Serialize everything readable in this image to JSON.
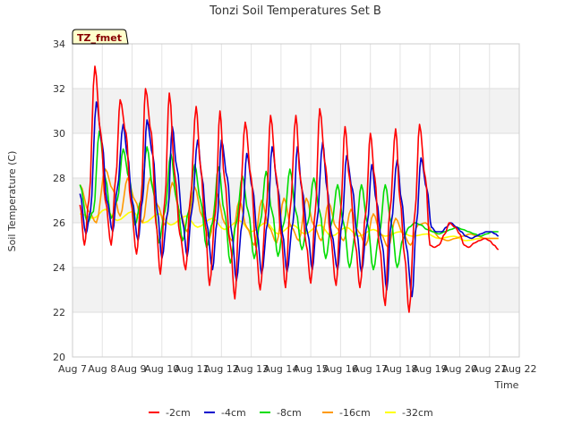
{
  "chart_data": {
    "type": "line",
    "title": "Tonzi Soil Temperatures Set B",
    "xlabel": "Time",
    "ylabel": "Soil Temperature (C)",
    "annotation": "TZ_fmet",
    "xlim": [
      7,
      22
    ],
    "ylim": [
      20,
      34
    ],
    "x_ticks": [
      7,
      8,
      9,
      10,
      11,
      12,
      13,
      14,
      15,
      16,
      17,
      18,
      19,
      20,
      21,
      22
    ],
    "x_tick_labels": [
      "Aug 7",
      "Aug 8",
      "Aug 9",
      "Aug 10",
      "Aug 11",
      "Aug 12",
      "Aug 13",
      "Aug 14",
      "Aug 15",
      "Aug 16",
      "Aug 17",
      "Aug 18",
      "Aug 19",
      "Aug 20",
      "Aug 21",
      "Aug 22"
    ],
    "y_ticks": [
      20,
      22,
      24,
      26,
      28,
      30,
      32,
      34
    ],
    "y_tick_labels": [
      "20",
      "22",
      "24",
      "26",
      "28",
      "30",
      "32",
      "34"
    ],
    "grid": true,
    "legend_position": "bottom",
    "series": [
      {
        "name": "-2cm",
        "color": "#ff0000",
        "x": [
          7.25,
          7.4,
          7.55,
          7.75,
          7.95,
          8.1,
          8.3,
          8.45,
          8.6,
          8.8,
          8.95,
          9.15,
          9.3,
          9.45,
          9.65,
          9.8,
          9.95,
          10.1,
          10.25,
          10.45,
          10.6,
          10.8,
          10.95,
          11.15,
          11.3,
          11.45,
          11.6,
          11.8,
          11.95,
          12.1,
          12.3,
          12.45,
          12.6,
          12.8,
          13.0,
          13.15,
          13.3,
          13.5,
          13.65,
          13.85,
          14.0,
          14.15,
          14.3,
          14.5,
          14.65,
          14.85,
          15.0,
          15.15,
          15.3,
          15.5,
          15.65,
          15.85,
          16.0,
          16.15,
          16.3,
          16.5,
          16.65,
          16.85,
          17.0,
          17.15,
          17.3,
          17.5,
          17.65,
          17.85,
          18.0,
          18.15,
          18.3,
          18.5,
          18.65,
          18.85,
          19.0,
          19.15,
          19.3,
          19.5,
          19.65,
          19.85,
          20.0,
          20.15,
          20.3,
          20.5,
          20.65,
          20.85,
          21.0,
          21.15,
          21.3
        ],
        "y": [
          26.8,
          25.0,
          27.0,
          33.0,
          30.0,
          27.0,
          25.0,
          28.0,
          31.5,
          30.0,
          27.0,
          24.6,
          27.0,
          32.0,
          30.0,
          26.0,
          23.7,
          27.0,
          31.8,
          28.0,
          25.5,
          23.9,
          27.0,
          31.2,
          28.5,
          26.0,
          23.2,
          26.5,
          31.0,
          28.0,
          25.0,
          22.6,
          26.5,
          30.5,
          28.0,
          25.0,
          23.0,
          26.5,
          30.8,
          28.0,
          25.5,
          23.1,
          26.5,
          30.8,
          28.0,
          25.0,
          23.3,
          26.5,
          31.1,
          28.5,
          25.5,
          23.2,
          26.5,
          30.3,
          28.0,
          25.0,
          23.1,
          26.5,
          30.0,
          28.0,
          25.0,
          22.3,
          26.5,
          30.2,
          27.0,
          24.5,
          22.0,
          26.5,
          30.4,
          28.0,
          25.0,
          24.9,
          25.0,
          25.5,
          26.0,
          25.8,
          25.5,
          25.0,
          24.9,
          25.1,
          25.2,
          25.3,
          25.2,
          25.0,
          24.8
        ]
      },
      {
        "name": "-4cm",
        "color": "#0000cc",
        "x": [
          7.25,
          7.45,
          7.6,
          7.8,
          8.0,
          8.15,
          8.35,
          8.5,
          8.7,
          8.85,
          9.0,
          9.2,
          9.35,
          9.5,
          9.7,
          9.85,
          10.0,
          10.2,
          10.35,
          10.5,
          10.7,
          10.85,
          11.0,
          11.2,
          11.35,
          11.5,
          11.7,
          11.85,
          12.0,
          12.2,
          12.35,
          12.5,
          12.7,
          12.85,
          13.05,
          13.2,
          13.35,
          13.55,
          13.7,
          13.9,
          14.05,
          14.2,
          14.4,
          14.55,
          14.7,
          14.9,
          15.05,
          15.2,
          15.4,
          15.55,
          15.7,
          15.9,
          16.05,
          16.2,
          16.4,
          16.55,
          16.7,
          16.9,
          17.05,
          17.2,
          17.4,
          17.55,
          17.7,
          17.9,
          18.05,
          18.2,
          18.4,
          18.55,
          18.7,
          18.9,
          19.05,
          19.2,
          19.4,
          19.55,
          19.7,
          19.9,
          20.05,
          20.2,
          20.4,
          20.55,
          20.7,
          20.9,
          21.05,
          21.2,
          21.3
        ],
        "y": [
          27.3,
          25.5,
          26.5,
          31.4,
          29.5,
          27.0,
          25.6,
          27.5,
          30.4,
          29.0,
          27.0,
          25.2,
          27.0,
          30.6,
          29.0,
          26.5,
          24.4,
          26.5,
          30.3,
          28.5,
          26.0,
          24.5,
          26.5,
          29.7,
          28.0,
          26.0,
          23.9,
          26.0,
          29.7,
          28.0,
          25.5,
          23.4,
          26.0,
          29.1,
          27.5,
          25.5,
          23.7,
          26.0,
          29.4,
          27.5,
          25.5,
          23.8,
          26.0,
          29.4,
          27.5,
          25.5,
          23.9,
          26.0,
          29.6,
          27.5,
          25.5,
          23.9,
          26.0,
          29.0,
          27.5,
          25.5,
          23.8,
          26.0,
          28.6,
          27.0,
          25.0,
          23.0,
          26.0,
          28.8,
          27.0,
          25.0,
          22.7,
          26.0,
          28.9,
          27.5,
          25.8,
          25.6,
          25.6,
          25.8,
          26.0,
          25.8,
          25.6,
          25.4,
          25.3,
          25.4,
          25.5,
          25.6,
          25.6,
          25.5,
          25.4
        ]
      },
      {
        "name": "-8cm",
        "color": "#00dd00",
        "x": [
          7.25,
          7.5,
          7.7,
          7.9,
          8.1,
          8.3,
          8.5,
          8.7,
          8.9,
          9.1,
          9.3,
          9.5,
          9.7,
          9.9,
          10.1,
          10.3,
          10.5,
          10.7,
          10.9,
          11.1,
          11.3,
          11.5,
          11.7,
          11.9,
          12.1,
          12.3,
          12.5,
          12.7,
          12.9,
          13.1,
          13.3,
          13.5,
          13.7,
          13.9,
          14.1,
          14.3,
          14.5,
          14.7,
          14.9,
          15.1,
          15.3,
          15.5,
          15.7,
          15.9,
          16.1,
          16.3,
          16.5,
          16.7,
          16.9,
          17.1,
          17.3,
          17.5,
          17.7,
          17.9,
          18.1,
          18.3,
          18.5,
          18.7,
          18.9,
          19.1,
          19.3,
          19.5,
          19.7,
          19.9,
          20.1,
          20.3,
          20.5,
          20.7,
          20.9,
          21.1,
          21.3
        ],
        "y": [
          27.7,
          26.0,
          26.5,
          30.1,
          28.0,
          26.2,
          27.0,
          29.3,
          28.0,
          25.9,
          27.0,
          29.4,
          27.5,
          25.1,
          26.5,
          29.1,
          27.0,
          25.2,
          26.5,
          28.6,
          27.0,
          24.9,
          26.0,
          28.5,
          26.5,
          24.2,
          26.0,
          28.1,
          26.5,
          24.4,
          26.0,
          28.3,
          26.5,
          24.5,
          26.0,
          28.4,
          26.5,
          24.8,
          26.0,
          28.0,
          26.5,
          24.4,
          26.0,
          27.7,
          26.0,
          24.0,
          25.5,
          27.7,
          26.0,
          23.9,
          25.5,
          27.7,
          26.0,
          24.0,
          25.3,
          25.8,
          26.0,
          25.9,
          25.7,
          25.6,
          25.5,
          25.6,
          25.7,
          25.8,
          25.7,
          25.6,
          25.5,
          25.4,
          25.5,
          25.6,
          25.6
        ]
      },
      {
        "name": "-16cm",
        "color": "#ff9900",
        "x": [
          7.25,
          7.55,
          7.8,
          8.1,
          8.35,
          8.6,
          8.85,
          9.1,
          9.35,
          9.6,
          9.85,
          10.1,
          10.35,
          10.6,
          10.85,
          11.1,
          11.35,
          11.6,
          11.85,
          12.1,
          12.35,
          12.6,
          12.85,
          13.1,
          13.35,
          13.6,
          13.85,
          14.1,
          14.35,
          14.6,
          14.85,
          15.1,
          15.35,
          15.6,
          15.85,
          16.1,
          16.35,
          16.6,
          16.85,
          17.1,
          17.35,
          17.6,
          17.85,
          18.1,
          18.35,
          18.6,
          18.85,
          19.1,
          19.35,
          19.6,
          19.85,
          20.1,
          20.35,
          20.6,
          20.85,
          21.1,
          21.3
        ],
        "y": [
          27.7,
          26.5,
          26.0,
          28.4,
          27.5,
          26.3,
          28.0,
          27.0,
          26.0,
          28.0,
          26.8,
          25.9,
          27.8,
          26.5,
          25.6,
          27.6,
          26.3,
          25.3,
          27.3,
          26.0,
          25.2,
          27.0,
          25.8,
          25.0,
          27.0,
          25.8,
          25.1,
          27.1,
          25.8,
          25.2,
          27.1,
          25.9,
          25.2,
          26.9,
          25.8,
          25.2,
          26.6,
          25.6,
          25.0,
          26.4,
          25.5,
          24.9,
          26.2,
          25.5,
          25.0,
          25.9,
          26.0,
          25.6,
          25.3,
          25.2,
          25.3,
          25.4,
          25.5,
          25.4,
          25.3,
          25.3,
          25.3
        ]
      },
      {
        "name": "-32cm",
        "color": "#ffff00",
        "x": [
          7.25,
          7.7,
          8.1,
          8.5,
          9.0,
          9.4,
          9.9,
          10.3,
          10.8,
          11.2,
          11.7,
          12.1,
          12.6,
          13.0,
          13.5,
          13.9,
          14.4,
          14.8,
          15.3,
          15.7,
          16.2,
          16.6,
          17.1,
          17.5,
          18.0,
          18.4,
          18.9,
          19.3,
          19.8,
          20.2,
          20.7,
          21.1,
          21.3
        ],
        "y": [
          26.4,
          26.2,
          26.6,
          26.1,
          26.5,
          26.0,
          26.4,
          25.9,
          26.3,
          25.8,
          26.2,
          25.7,
          26.1,
          25.6,
          26.0,
          25.5,
          25.9,
          25.5,
          25.9,
          25.4,
          25.8,
          25.4,
          25.7,
          25.4,
          25.6,
          25.4,
          25.5,
          25.3,
          25.4,
          25.2,
          25.3,
          25.3,
          25.3
        ]
      }
    ]
  }
}
